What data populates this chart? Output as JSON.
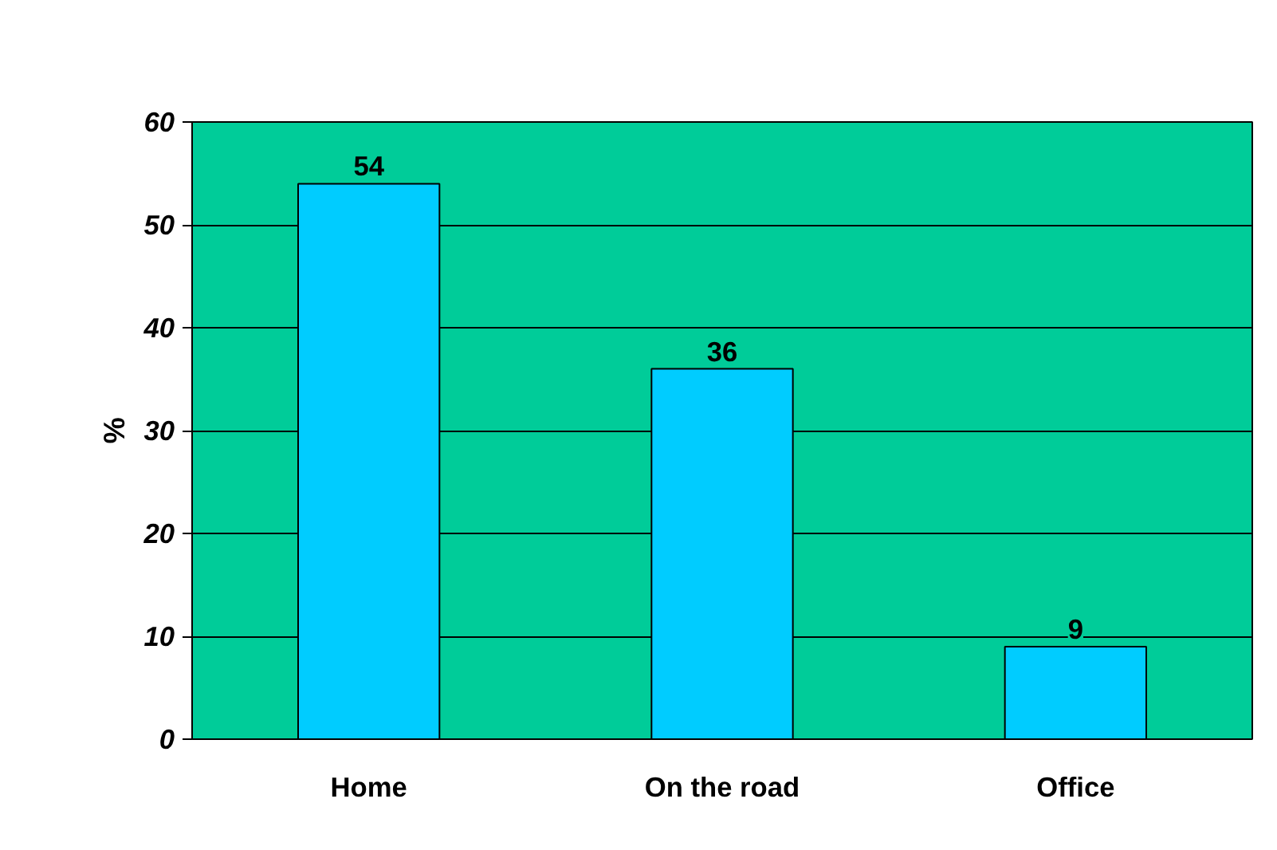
{
  "chart_data": {
    "type": "bar",
    "ylabel": "%",
    "categories": [
      "Home",
      "On the road",
      "Office"
    ],
    "values": [
      54,
      36,
      9
    ],
    "color": "#00ccff",
    "ylim": [
      0,
      60
    ],
    "yticks": [
      0,
      10,
      20,
      30,
      40,
      50,
      60
    ],
    "grid": "y",
    "data_labels": true
  }
}
